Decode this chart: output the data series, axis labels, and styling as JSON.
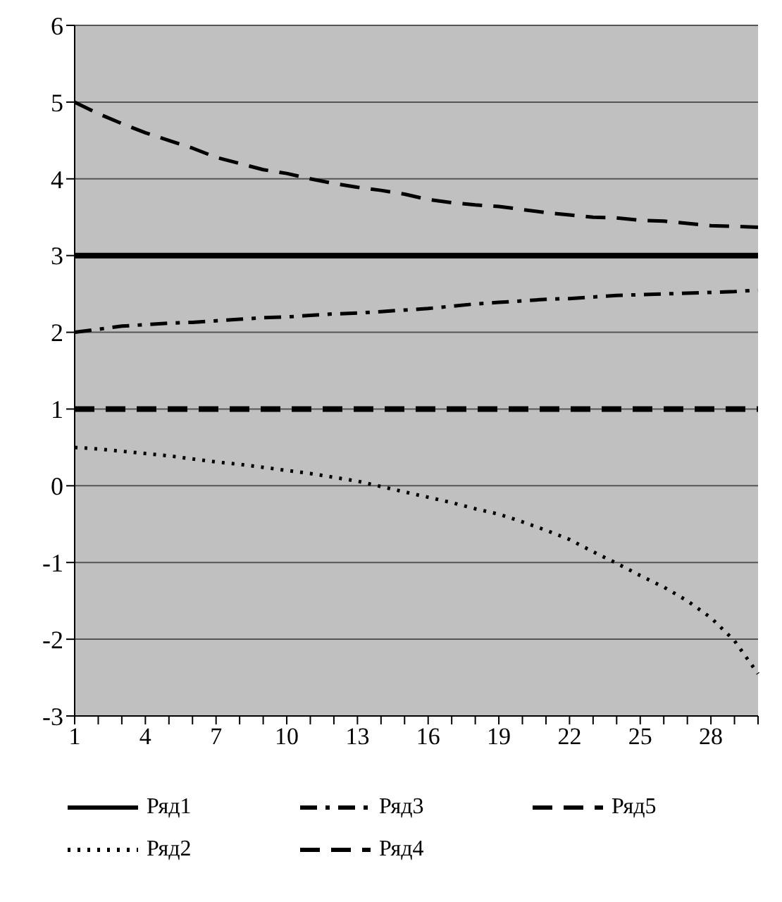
{
  "chart_data": {
    "type": "line",
    "categories": [
      "1",
      null,
      null,
      "4",
      null,
      null,
      "7",
      null,
      null,
      "10",
      null,
      null,
      "13",
      null,
      null,
      "16",
      null,
      null,
      "19",
      null,
      null,
      "22",
      null,
      null,
      "25",
      null,
      null,
      "28",
      null,
      null
    ],
    "series": [
      {
        "name": "Ряд1",
        "color": "#000000",
        "line_style": "solid",
        "values": [
          3,
          3,
          3,
          3,
          3,
          3,
          3,
          3,
          3,
          3,
          3,
          3,
          3,
          3,
          3,
          3,
          3,
          3,
          3,
          3,
          3,
          3,
          3,
          3,
          3,
          3,
          3,
          3,
          3,
          3
        ]
      },
      {
        "name": "Ряд2",
        "color": "#000000",
        "line_style": "dotted",
        "values": [
          0.5,
          0.48,
          0.45,
          0.42,
          0.39,
          0.35,
          0.31,
          0.28,
          0.24,
          0.2,
          0.16,
          0.11,
          0.06,
          -0.01,
          -0.08,
          -0.15,
          -0.22,
          -0.3,
          -0.37,
          -0.47,
          -0.58,
          -0.7,
          -0.86,
          -1.01,
          -1.17,
          -1.32,
          -1.5,
          -1.72,
          -2.02,
          -2.45
        ]
      },
      {
        "name": "Ряд3",
        "color": "#000000",
        "line_style": "dashdot",
        "values": [
          2,
          2.04,
          2.08,
          2.1,
          2.12,
          2.13,
          2.15,
          2.17,
          2.19,
          2.2,
          2.22,
          2.24,
          2.25,
          2.27,
          2.29,
          2.31,
          2.34,
          2.37,
          2.39,
          2.41,
          2.43,
          2.44,
          2.46,
          2.48,
          2.49,
          2.5,
          2.51,
          2.52,
          2.53,
          2.55
        ]
      },
      {
        "name": "Ряд4",
        "color": "#000000",
        "line_style": "dashed",
        "values": [
          5,
          4.85,
          4.72,
          4.6,
          4.5,
          4.4,
          4.28,
          4.2,
          4.12,
          4.07,
          4,
          3.94,
          3.89,
          3.85,
          3.8,
          3.73,
          3.69,
          3.66,
          3.64,
          3.6,
          3.56,
          3.53,
          3.5,
          3.49,
          3.46,
          3.45,
          3.42,
          3.39,
          3.38,
          3.37
        ]
      },
      {
        "name": "Ряд5",
        "color": "#000000",
        "line_style": "dashed",
        "values": [
          1,
          1,
          1,
          1,
          1,
          1,
          1,
          1,
          1,
          1,
          1,
          1,
          1,
          1,
          1,
          1,
          1,
          1,
          1,
          1,
          1,
          1,
          1,
          1,
          1,
          1,
          1,
          1,
          1,
          1
        ]
      }
    ],
    "ylim": [
      -3,
      6
    ],
    "yticks": [
      -3,
      -2,
      -1,
      0,
      1,
      2,
      3,
      4,
      5,
      6
    ],
    "grid": "y",
    "legend": "bottom",
    "marker": "none"
  }
}
